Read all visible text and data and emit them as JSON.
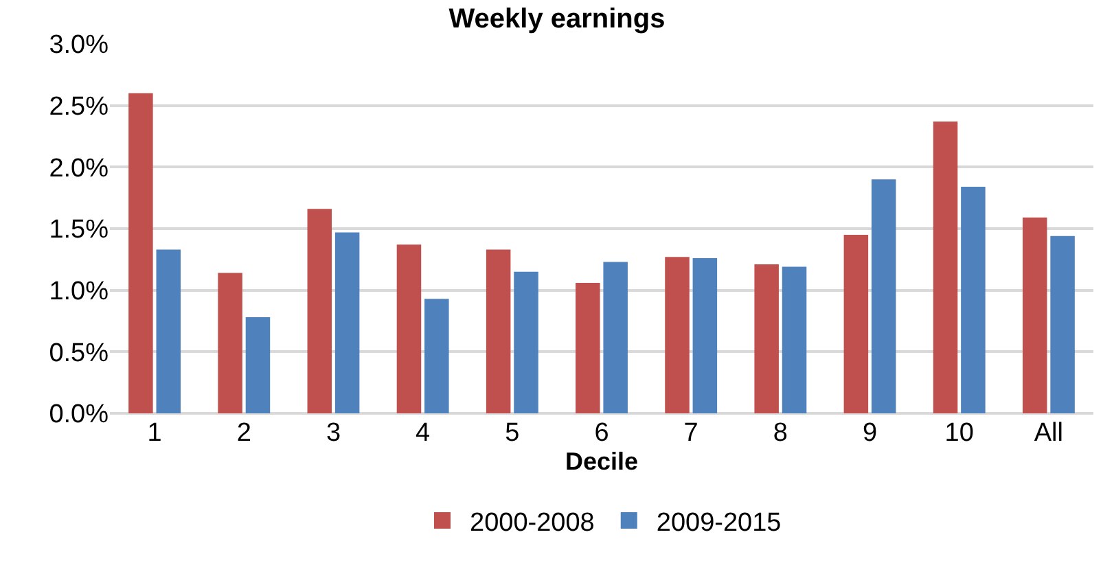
{
  "chart_data": {
    "type": "bar",
    "title": "Weekly earnings",
    "xlabel": "Decile",
    "categories": [
      "1",
      "2",
      "3",
      "4",
      "5",
      "6",
      "7",
      "8",
      "9",
      "10",
      "All"
    ],
    "series": [
      {
        "name": "2000-2008",
        "color": "#c0504d",
        "values": [
          2.6,
          1.14,
          1.66,
          1.37,
          1.33,
          1.06,
          1.27,
          1.21,
          1.45,
          2.37,
          1.59
        ]
      },
      {
        "name": "2009-2015",
        "color": "#4f81bd",
        "values": [
          1.33,
          0.78,
          1.47,
          0.93,
          1.15,
          1.23,
          1.26,
          1.19,
          1.9,
          1.84,
          1.44
        ]
      }
    ],
    "ylim": [
      0,
      3.0
    ],
    "yticks": [
      {
        "value": 0,
        "label": "0.0%"
      },
      {
        "value": 0.5,
        "label": "0.5%"
      },
      {
        "value": 1.0,
        "label": "1.0%"
      },
      {
        "value": 1.5,
        "label": "1.5%"
      },
      {
        "value": 2.0,
        "label": "2.0%"
      },
      {
        "value": 2.5,
        "label": "2.5%"
      },
      {
        "value": 3.0,
        "label": "3.0%"
      }
    ],
    "grid": "y",
    "legend": "bottom"
  }
}
